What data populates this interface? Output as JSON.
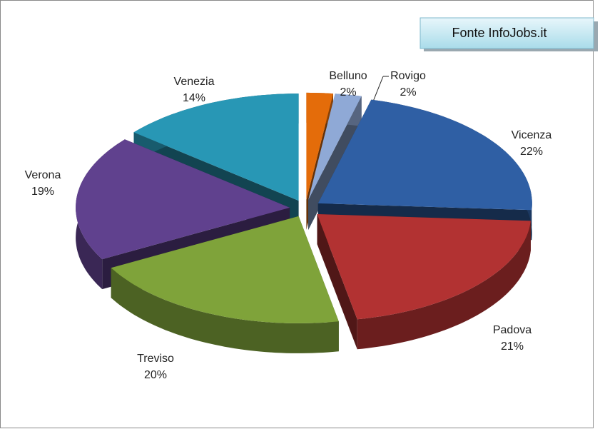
{
  "chart_data": {
    "type": "pie3d",
    "annotation": "Fonte InfoJobs.it",
    "categories": [
      "Belluno",
      "Rovigo",
      "Vicenza",
      "Padova",
      "Treviso",
      "Verona",
      "Venezia"
    ],
    "values": [
      2,
      2,
      22,
      21,
      20,
      19,
      14
    ],
    "value_labels": [
      "2%",
      "2%",
      "22%",
      "21%",
      "20%",
      "19%",
      "14%"
    ],
    "colors": [
      "#e46c0a",
      "#8fa9d6",
      "#2f5fa4",
      "#b23232",
      "#7fa33a",
      "#60418e",
      "#2897b5"
    ]
  }
}
